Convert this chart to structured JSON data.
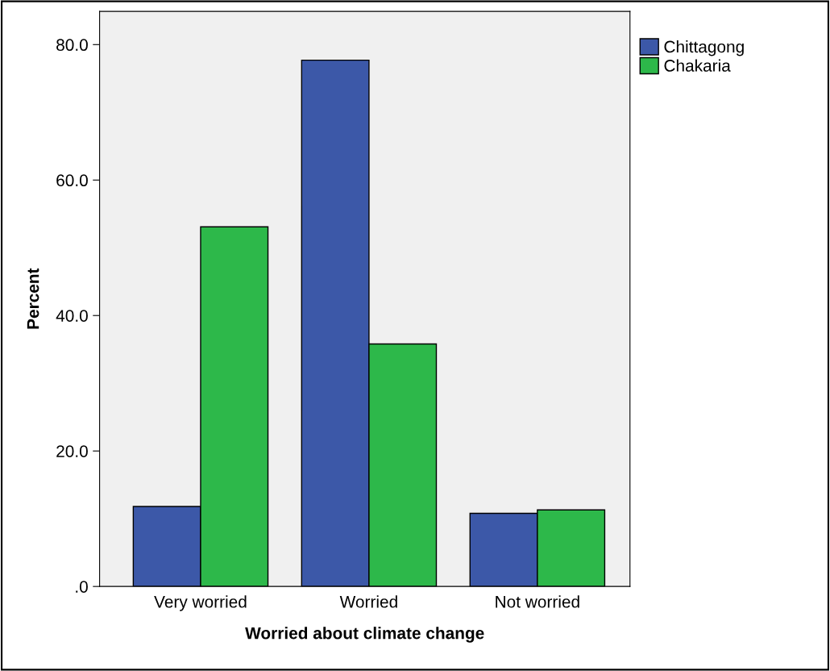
{
  "chart_data": {
    "type": "bar",
    "xlabel": "Worried about climate change",
    "ylabel": "Percent",
    "categories": [
      "Very worried",
      "Worried",
      "Not worried"
    ],
    "series": [
      {
        "name": "Chittagong",
        "color": "#3c58a8",
        "values": [
          11.8,
          77.7,
          10.8
        ]
      },
      {
        "name": "Chakaria",
        "color": "#2db84a",
        "values": [
          53.1,
          35.8,
          11.3
        ]
      }
    ],
    "ylim": [
      0,
      84.9
    ],
    "yticks": [
      {
        "value": 0,
        "label": ".0"
      },
      {
        "value": 20,
        "label": "20.0"
      },
      {
        "value": 40,
        "label": "40.0"
      },
      {
        "value": 60,
        "label": "60.0"
      },
      {
        "value": 80,
        "label": "80.0"
      }
    ],
    "grid": false,
    "legend": "top right"
  }
}
